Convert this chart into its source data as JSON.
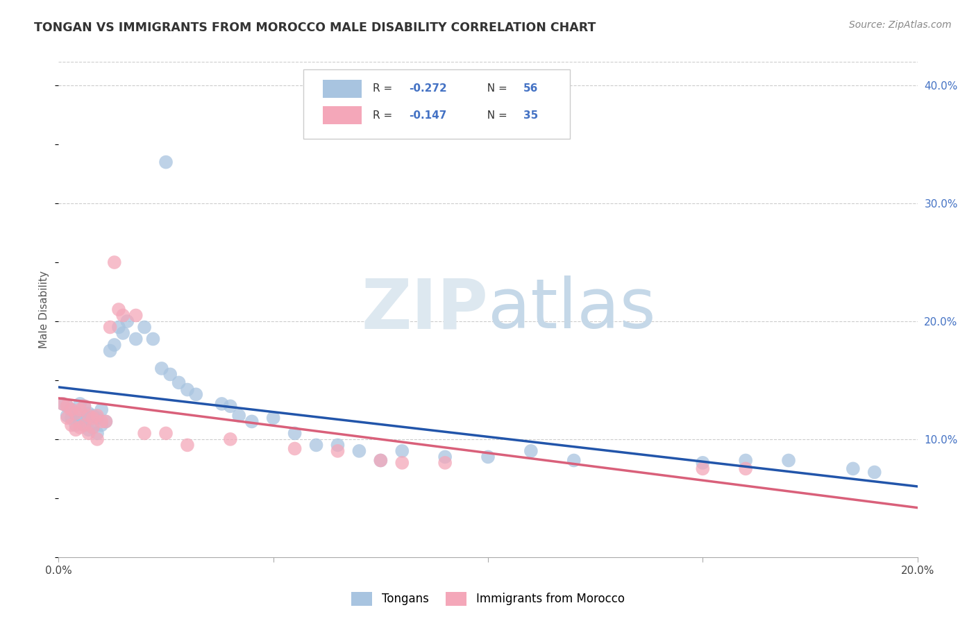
{
  "title": "TONGAN VS IMMIGRANTS FROM MOROCCO MALE DISABILITY CORRELATION CHART",
  "source": "Source: ZipAtlas.com",
  "ylabel": "Male Disability",
  "xlim": [
    0.0,
    0.2
  ],
  "ylim": [
    0.0,
    0.42
  ],
  "x_ticks": [
    0.0,
    0.05,
    0.1,
    0.15,
    0.2
  ],
  "y_ticks": [
    0.0,
    0.1,
    0.2,
    0.3,
    0.4
  ],
  "y_tick_labels_right": [
    "",
    "10.0%",
    "20.0%",
    "30.0%",
    "40.0%"
  ],
  "tongan_color": "#a8c4e0",
  "morocco_color": "#f4a7b9",
  "tongan_line_color": "#2255aa",
  "morocco_line_color": "#d9607a",
  "tongan_R": -0.272,
  "tongan_N": 56,
  "morocco_R": -0.147,
  "morocco_N": 35,
  "tongan_x": [
    0.001,
    0.002,
    0.002,
    0.003,
    0.003,
    0.004,
    0.004,
    0.005,
    0.005,
    0.005,
    0.006,
    0.006,
    0.007,
    0.007,
    0.007,
    0.008,
    0.008,
    0.009,
    0.009,
    0.01,
    0.01,
    0.011,
    0.012,
    0.013,
    0.014,
    0.015,
    0.016,
    0.018,
    0.02,
    0.022,
    0.024,
    0.026,
    0.028,
    0.03,
    0.032,
    0.038,
    0.04,
    0.042,
    0.045,
    0.05,
    0.055,
    0.06,
    0.065,
    0.07,
    0.075,
    0.08,
    0.09,
    0.1,
    0.11,
    0.12,
    0.025,
    0.15,
    0.16,
    0.17,
    0.185,
    0.19
  ],
  "tongan_y": [
    0.13,
    0.128,
    0.12,
    0.125,
    0.118,
    0.122,
    0.112,
    0.13,
    0.118,
    0.115,
    0.128,
    0.112,
    0.122,
    0.118,
    0.108,
    0.12,
    0.11,
    0.118,
    0.105,
    0.125,
    0.112,
    0.115,
    0.175,
    0.18,
    0.195,
    0.19,
    0.2,
    0.185,
    0.195,
    0.185,
    0.16,
    0.155,
    0.148,
    0.142,
    0.138,
    0.13,
    0.128,
    0.12,
    0.115,
    0.118,
    0.105,
    0.095,
    0.095,
    0.09,
    0.082,
    0.09,
    0.085,
    0.085,
    0.09,
    0.082,
    0.335,
    0.08,
    0.082,
    0.082,
    0.075,
    0.072
  ],
  "morocco_x": [
    0.001,
    0.002,
    0.002,
    0.003,
    0.003,
    0.004,
    0.004,
    0.005,
    0.005,
    0.006,
    0.006,
    0.007,
    0.007,
    0.008,
    0.008,
    0.009,
    0.009,
    0.01,
    0.011,
    0.012,
    0.013,
    0.014,
    0.015,
    0.018,
    0.02,
    0.025,
    0.03,
    0.04,
    0.055,
    0.065,
    0.075,
    0.08,
    0.09,
    0.15,
    0.16
  ],
  "morocco_y": [
    0.13,
    0.128,
    0.118,
    0.125,
    0.112,
    0.122,
    0.108,
    0.125,
    0.11,
    0.128,
    0.112,
    0.12,
    0.105,
    0.118,
    0.11,
    0.12,
    0.1,
    0.115,
    0.115,
    0.195,
    0.25,
    0.21,
    0.205,
    0.205,
    0.105,
    0.105,
    0.095,
    0.1,
    0.092,
    0.09,
    0.082,
    0.08,
    0.08,
    0.075,
    0.075
  ]
}
